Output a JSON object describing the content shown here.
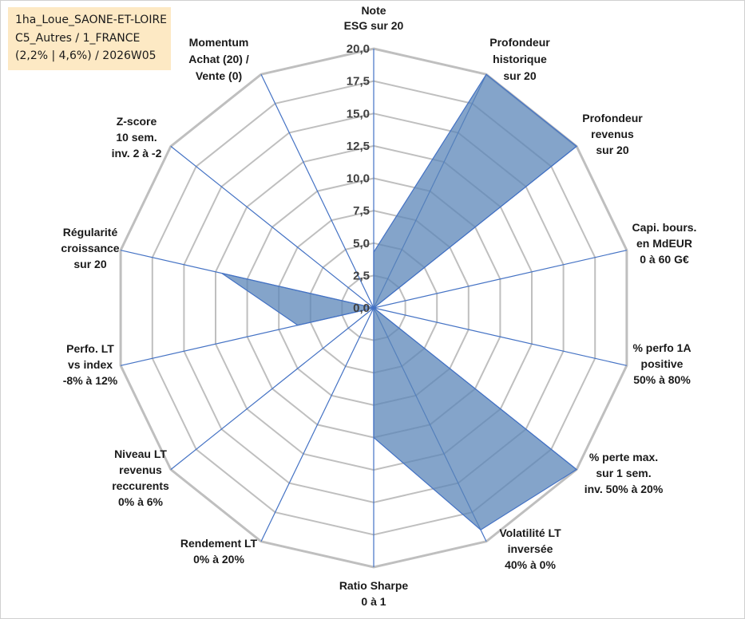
{
  "info_box": {
    "line1": "1ha_Loue_SAONE-ET-LOIRE",
    "line2": "C5_Autres / 1_FRANCE",
    "line3": "(2,2% | 4,6%) / 2026W05"
  },
  "colors": {
    "fill": "#5b86b8",
    "fill_opacity": 0.75,
    "outline": "#4472c4",
    "spoke": "#4472c4",
    "grid": "#bfbfbf",
    "outer_grid": "#bfbfbf",
    "info_bg": "#fde9c4"
  },
  "chart_data": {
    "type": "radar",
    "rmin": 0,
    "rmax": 20,
    "tick_step": 2.5,
    "tick_labels": [
      "0,0",
      "2,5",
      "5,0",
      "7,5",
      "10,0",
      "12,5",
      "15,0",
      "17,5",
      "20,0"
    ],
    "axes": [
      {
        "label": [
          "Note",
          "ESG sur 20"
        ],
        "value": 4.3
      },
      {
        "label": [
          "Profondeur",
          "historique",
          "sur 20"
        ],
        "value": 20
      },
      {
        "label": [
          "Profondeur",
          "revenus",
          "sur 20"
        ],
        "value": 20
      },
      {
        "label": [
          "Capi. bours.",
          "en MdEUR",
          "0 à 60 G€"
        ],
        "value": 0
      },
      {
        "label": [
          "% perfo 1A",
          "positive",
          "50% à 80%"
        ],
        "value": 0
      },
      {
        "label": [
          "% perte max.",
          "sur 1 sem.",
          "inv. 50% à 20%"
        ],
        "value": 20
      },
      {
        "label": [
          "Volatilité LT",
          "inversée",
          "40% à 0%"
        ],
        "value": 19
      },
      {
        "label": [
          "Ratio Sharpe",
          "0 à 1"
        ],
        "value": 10
      },
      {
        "label": [
          "Rendement LT",
          "0% à 20%"
        ],
        "value": 0
      },
      {
        "label": [
          "Niveau LT",
          "revenus",
          "reccurents",
          "0% à 6%"
        ],
        "value": 0
      },
      {
        "label": [
          "Perfo. LT",
          "vs index",
          "-8% à 12%"
        ],
        "value": 6
      },
      {
        "label": [
          "Régularité",
          "croissance",
          "sur 20"
        ],
        "value": 12
      },
      {
        "label": [
          "Z-score",
          "10 sem.",
          "inv. 2 à -2"
        ],
        "value": 0
      },
      {
        "label": [
          "Momentum",
          "Achat (20) /",
          "Vente (0)"
        ],
        "value": 0
      }
    ]
  }
}
